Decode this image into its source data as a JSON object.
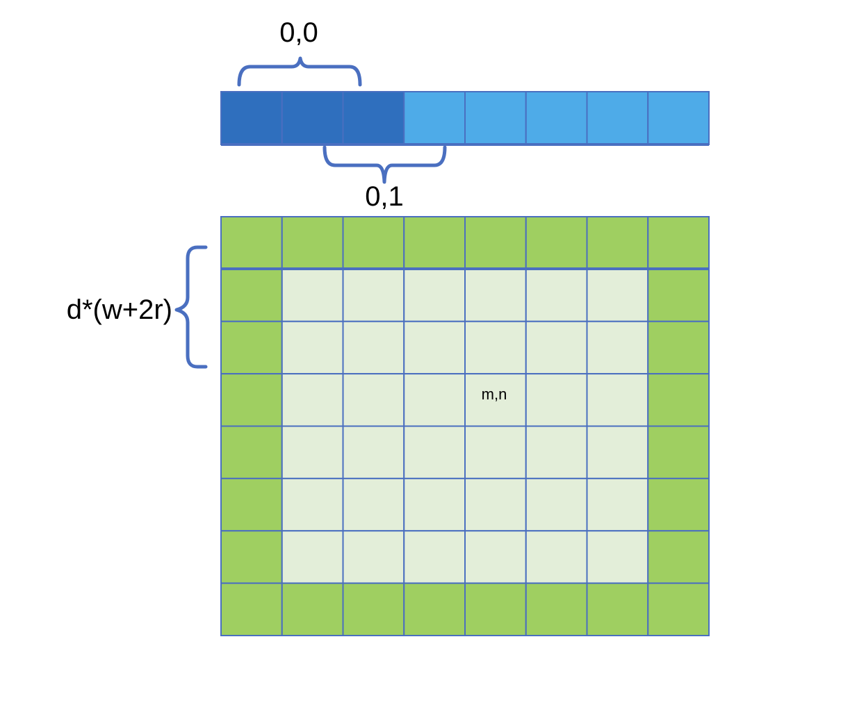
{
  "colors": {
    "strip_dark": "#2f6fbe",
    "strip_light": "#4eabe8",
    "grid_border": "#9fcf61",
    "grid_inner": "#e3eed9",
    "line": "#4a6fc0"
  },
  "strip": {
    "count": 8,
    "dark_count": 3
  },
  "grid": {
    "cols": 8,
    "rows": 8
  },
  "labels": {
    "top_bracket": "0,0",
    "bottom_bracket": "0,1",
    "row_span": "d*(w+2r)",
    "cell": "m,n"
  }
}
